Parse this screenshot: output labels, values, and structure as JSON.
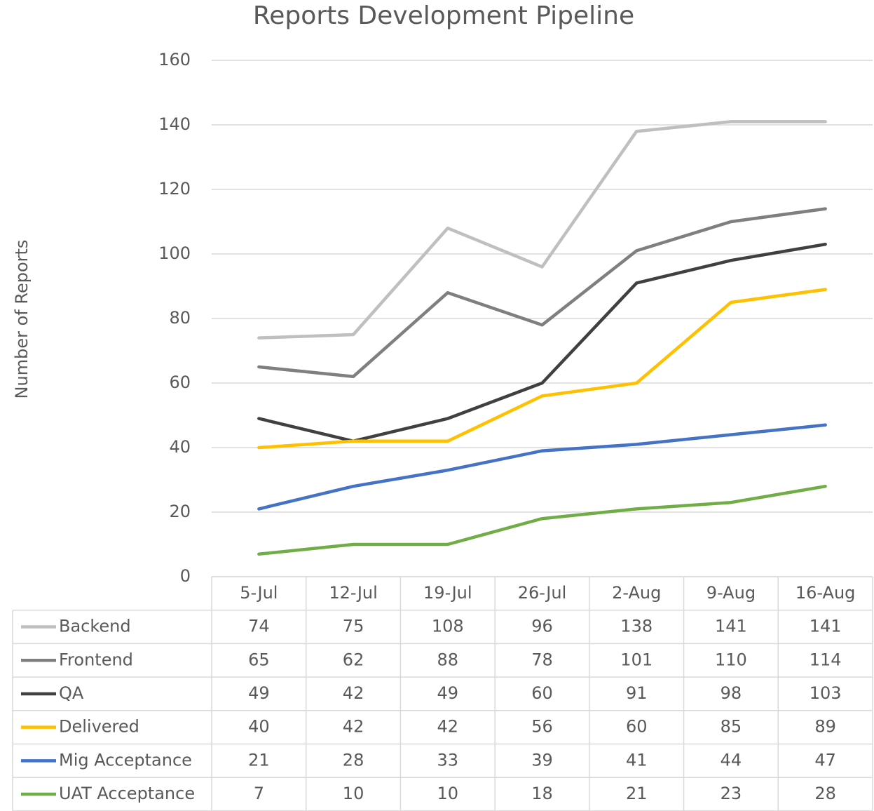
{
  "chart_data": {
    "type": "line",
    "title": "Reports Development Pipeline",
    "y_label": "Number of Reports",
    "categories": [
      "5-Jul",
      "12-Jul",
      "19-Jul",
      "26-Jul",
      "2-Aug",
      "9-Aug",
      "16-Aug"
    ],
    "series": [
      {
        "name": "Backend",
        "color": "#bfbfbf",
        "values": [
          74,
          75,
          108,
          96,
          138,
          141,
          141
        ]
      },
      {
        "name": "Frontend",
        "color": "#7f7f7f",
        "values": [
          65,
          62,
          88,
          78,
          101,
          110,
          114
        ]
      },
      {
        "name": "QA",
        "color": "#404040",
        "values": [
          49,
          42,
          49,
          60,
          91,
          98,
          103
        ]
      },
      {
        "name": "Delivered",
        "color": "#ffc000",
        "values": [
          40,
          42,
          42,
          56,
          60,
          85,
          89
        ]
      },
      {
        "name": "Mig Acceptance",
        "color": "#4472c4",
        "values": [
          21,
          28,
          33,
          39,
          41,
          44,
          47
        ]
      },
      {
        "name": "UAT Acceptance",
        "color": "#70ad47",
        "values": [
          7,
          10,
          10,
          18,
          21,
          23,
          28
        ]
      }
    ],
    "ylim": [
      0,
      160
    ],
    "yticks": [
      0,
      20,
      40,
      60,
      80,
      100,
      120,
      140,
      160
    ],
    "grid": true,
    "data_table": true
  }
}
